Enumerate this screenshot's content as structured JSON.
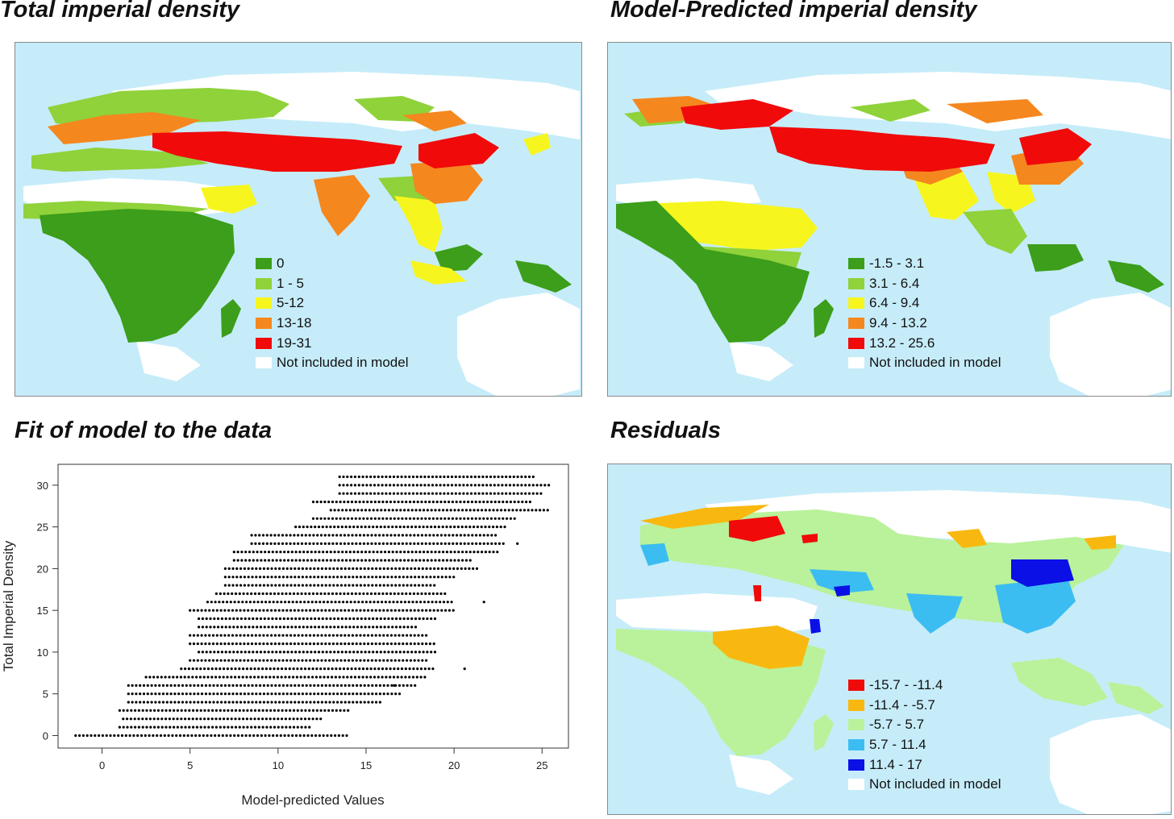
{
  "panels": {
    "total": {
      "title": "Total imperial density",
      "legend": [
        {
          "label": "0",
          "color": "#3c9e1a"
        },
        {
          "label": "1 - 5",
          "color": "#8fd23a"
        },
        {
          "label": "5-12",
          "color": "#f6f61e"
        },
        {
          "label": "13-18",
          "color": "#f5871f"
        },
        {
          "label": "19-31",
          "color": "#f00a0a"
        },
        {
          "label": "Not included in model",
          "color": "#ffffff"
        }
      ]
    },
    "predicted": {
      "title": "Model-Predicted imperial density",
      "legend": [
        {
          "label": "-1.5 - 3.1",
          "color": "#3c9e1a"
        },
        {
          "label": "3.1 - 6.4",
          "color": "#8fd23a"
        },
        {
          "label": "6.4 - 9.4",
          "color": "#f6f61e"
        },
        {
          "label": "9.4 - 13.2",
          "color": "#f5871f"
        },
        {
          "label": "13.2 - 25.6",
          "color": "#f00a0a"
        },
        {
          "label": "Not included in model",
          "color": "#ffffff"
        }
      ]
    },
    "fit": {
      "title": "Fit of model to the data"
    },
    "residuals": {
      "title": "Residuals",
      "legend": [
        {
          "label": "-15.7 - -11.4",
          "color": "#f00a0a"
        },
        {
          "label": "-11.4 - -5.7",
          "color": "#f9b80f"
        },
        {
          "label": "-5.7 - 5.7",
          "color": "#b9f29a"
        },
        {
          "label": "5.7 - 11.4",
          "color": "#3cbdf2"
        },
        {
          "label": "11.4 - 17",
          "color": "#0a10e6"
        },
        {
          "label": "Not included in model",
          "color": "#ffffff"
        }
      ]
    }
  },
  "colors": {
    "ocean": "#c6ecf9",
    "excluded": "#ffffff"
  },
  "chart_data": {
    "type": "scatter",
    "xlabel": "Model-predicted Values",
    "ylabel": "Total Imperial Density",
    "xlim": [
      -2.5,
      26.5
    ],
    "ylim": [
      -1.5,
      32.5
    ],
    "xticks": [
      0,
      5,
      10,
      15,
      20,
      25
    ],
    "yticks": [
      0,
      5,
      10,
      15,
      20,
      25,
      30
    ],
    "bands": [
      {
        "y": 0,
        "x": [
          -1.5,
          14
        ]
      },
      {
        "y": 1,
        "x": [
          1,
          12
        ]
      },
      {
        "y": 2,
        "x": [
          1.2,
          12.5
        ]
      },
      {
        "y": 3,
        "x": [
          1,
          14
        ]
      },
      {
        "y": 4,
        "x": [
          1.5,
          16
        ]
      },
      {
        "y": 5,
        "x": [
          1.5,
          17
        ]
      },
      {
        "y": 6,
        "x": [
          1.5,
          18
        ]
      },
      {
        "y": 7,
        "x": [
          2.5,
          18.5
        ]
      },
      {
        "y": 8,
        "x": [
          4.5,
          19
        ]
      },
      {
        "y": 9,
        "x": [
          5,
          18.5
        ]
      },
      {
        "y": 10,
        "x": [
          5.5,
          19
        ]
      },
      {
        "y": 11,
        "x": [
          5,
          19
        ]
      },
      {
        "y": 12,
        "x": [
          5,
          18.5
        ]
      },
      {
        "y": 13,
        "x": [
          5.5,
          18
        ]
      },
      {
        "y": 14,
        "x": [
          5.5,
          19
        ]
      },
      {
        "y": 15,
        "x": [
          5,
          20
        ]
      },
      {
        "y": 16,
        "x": [
          6,
          20
        ]
      },
      {
        "y": 17,
        "x": [
          6.5,
          19.5
        ]
      },
      {
        "y": 18,
        "x": [
          7,
          19
        ]
      },
      {
        "y": 19,
        "x": [
          7,
          20
        ]
      },
      {
        "y": 20,
        "x": [
          7,
          21.5
        ]
      },
      {
        "y": 21,
        "x": [
          7.5,
          21
        ]
      },
      {
        "y": 22,
        "x": [
          7.5,
          22.5
        ]
      },
      {
        "y": 23,
        "x": [
          8.5,
          23
        ]
      },
      {
        "y": 24,
        "x": [
          8.5,
          22.5
        ]
      },
      {
        "y": 25,
        "x": [
          11,
          23
        ]
      },
      {
        "y": 26,
        "x": [
          12,
          23.5
        ]
      },
      {
        "y": 27,
        "x": [
          13,
          25.5
        ]
      },
      {
        "y": 28,
        "x": [
          12,
          24.5
        ]
      },
      {
        "y": 29,
        "x": [
          13.5,
          25
        ]
      },
      {
        "y": 30,
        "x": [
          13.5,
          25.5
        ]
      },
      {
        "y": 31,
        "x": [
          13.5,
          24.5
        ]
      }
    ],
    "points": [
      {
        "x": 21.7,
        "y": 16
      },
      {
        "x": 20.6,
        "y": 8
      },
      {
        "x": 16.6,
        "y": 6
      },
      {
        "x": 23.6,
        "y": 23
      }
    ]
  }
}
